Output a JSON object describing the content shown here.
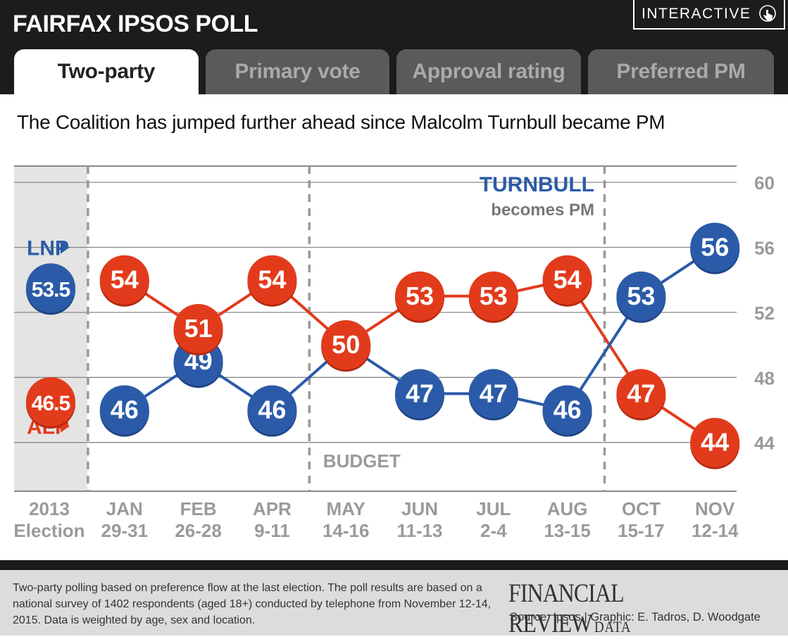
{
  "header": {
    "title": "FAIRFAX IPSOS POLL",
    "interactive_label": "INTERACTIVE",
    "interactive_icon": "touch-hand-icon",
    "tabs": [
      {
        "label": "Two-party",
        "active": true
      },
      {
        "label": "Primary vote",
        "active": false
      },
      {
        "label": "Approval rating",
        "active": false
      },
      {
        "label": "Preferred PM",
        "active": false
      }
    ]
  },
  "headline": "The Coalition has jumped further ahead since Malcolm Turnbull became PM",
  "chart_data": {
    "type": "line",
    "categories": [
      [
        "2013",
        "Election"
      ],
      [
        "JAN",
        "29-31"
      ],
      [
        "FEB",
        "26-28"
      ],
      [
        "APR",
        "9-11"
      ],
      [
        "MAY",
        "14-16"
      ],
      [
        "JUN",
        "11-13"
      ],
      [
        "JUL",
        "2-4"
      ],
      [
        "AUG",
        "13-15"
      ],
      [
        "OCT",
        "15-17"
      ],
      [
        "NOV",
        "12-14"
      ]
    ],
    "series": [
      {
        "name": "LNP",
        "color": "#2b5ba8",
        "values": [
          53.5,
          46,
          49,
          46,
          50,
          47,
          47,
          46,
          53,
          56
        ],
        "labels": [
          "53.5",
          "46",
          "49",
          "46",
          "50",
          "47",
          "47",
          "46",
          "53",
          "56"
        ]
      },
      {
        "name": "ALP",
        "color": "#e23b1c",
        "values": [
          46.5,
          54,
          51,
          54,
          50,
          53,
          53,
          54,
          47,
          44
        ],
        "labels": [
          "46.5",
          "54",
          "51",
          "54",
          "50",
          "53",
          "53",
          "54",
          "47",
          "44"
        ]
      }
    ],
    "y_axis": {
      "ticks": [
        44,
        48,
        52,
        56,
        60
      ],
      "ylim": [
        41,
        61
      ],
      "position": "right"
    },
    "grid": true,
    "election_shaded": true,
    "annotations": [
      {
        "text": "BUDGET",
        "between": [
          3,
          4
        ]
      },
      {
        "text": "TURNBULL",
        "subtext": "becomes PM",
        "between": [
          7,
          8
        ]
      }
    ],
    "dividers_between": [
      [
        0,
        1
      ],
      [
        3,
        4
      ],
      [
        7,
        8
      ]
    ],
    "series_tags": {
      "LNP": "LNP",
      "ALP": "ALP"
    },
    "title": "",
    "xlabel": "",
    "ylabel": ""
  },
  "footer": {
    "note": "Two-party polling based on preference flow at the last election. The poll results are based on a national survey of 1402 respondents (aged 18+) conducted by telephone from November 12-14, 2015.  Data is weighted by age, sex and location.",
    "brand_main": "FINANCIAL REVIEW",
    "brand_sub": "DATA",
    "source": "Source: Ipsos | Graphic: E. Tadros, D. Woodgate"
  }
}
